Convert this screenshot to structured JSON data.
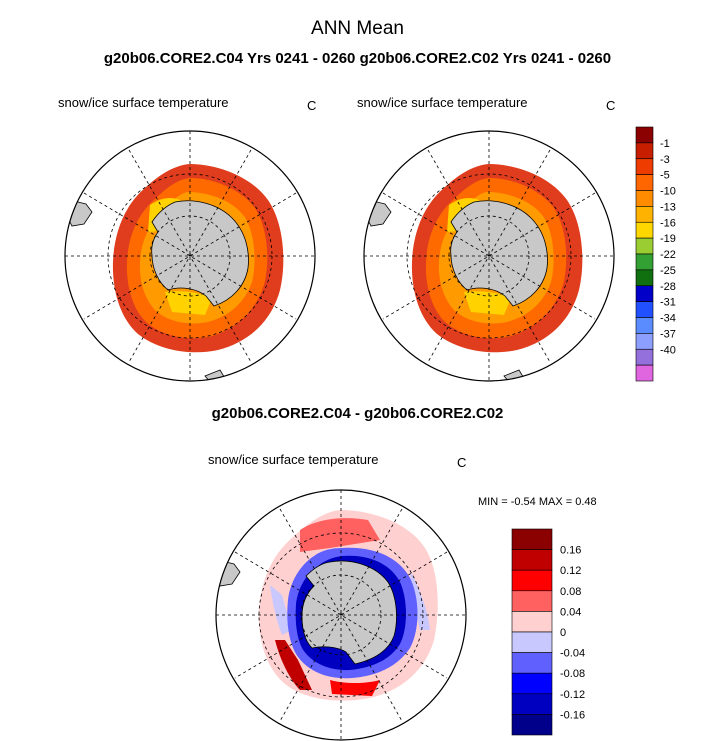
{
  "title": "ANN Mean",
  "subtitle": "g20b06.CORE2.C04  Yrs 0241 - 0260 g20b06.CORE2.C02  Yrs 0241 - 0260",
  "difference_title": "g20b06.CORE2.C04 - g20b06.CORE2.C02",
  "panels": [
    {
      "label": "snow/ice surface temperature",
      "unit": "C"
    },
    {
      "label": "snow/ice surface temperature",
      "unit": "C"
    },
    {
      "label": "snow/ice surface temperature",
      "unit": "C"
    }
  ],
  "minmax": {
    "text": "MIN =  -0.54 MAX =   0.48"
  },
  "colorbar_top": {
    "labels": [
      "-1",
      "-3",
      "-5",
      "-10",
      "-13",
      "-16",
      "-19",
      "-22",
      "-25",
      "-28",
      "-31",
      "-34",
      "-37",
      "-40"
    ],
    "colors": [
      "#8b0000",
      "#c81e00",
      "#ee3c00",
      "#ff6600",
      "#ff8c00",
      "#ffb300",
      "#ffd700",
      "#9acd32",
      "#32a032",
      "#107010",
      "#0000c8",
      "#2050ff",
      "#5b8cff",
      "#8c9fff",
      "#9370db",
      "#e066e0"
    ]
  },
  "colorbar_diff": {
    "labels": [
      "0.16",
      "0.12",
      "0.08",
      "0.04",
      "0",
      "-0.04",
      "-0.08",
      "-0.12",
      "-0.16"
    ],
    "colors": [
      "#8b0000",
      "#c00000",
      "#ff0000",
      "#ff6060",
      "#ffd0d0",
      "#c8c8ff",
      "#6060ff",
      "#0000ff",
      "#0000c0",
      "#00008b"
    ]
  },
  "map_colors": {
    "land": "#c8c8c8",
    "ocean": "#ffffff",
    "outer_ice": "#e03c1e",
    "ice_mid": "#ff6a00",
    "ice_inner": "#ff9a00",
    "ice_cold": "#ffd200"
  }
}
